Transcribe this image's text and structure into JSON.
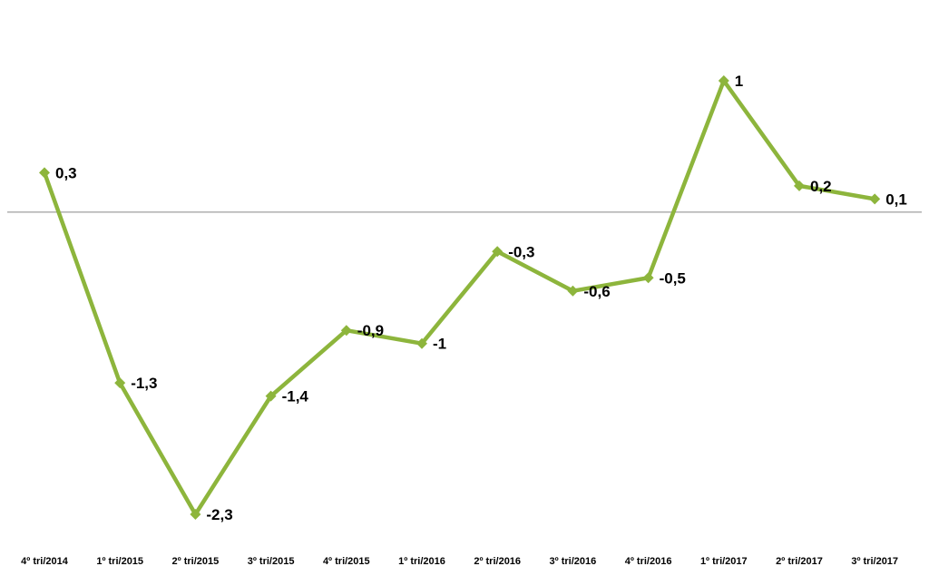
{
  "chart_data": {
    "type": "line",
    "categories": [
      "4º tri/2014",
      "1º tri/2015",
      "2º tri/2015",
      "3º tri/2015",
      "4º tri/2015",
      "1º tri/2016",
      "2º tri/2016",
      "3º tri/2016",
      "4º tri/2016",
      "1º tri/2017",
      "2º tri/2017",
      "3º tri/2017"
    ],
    "series": [
      {
        "values": [
          0.3,
          -1.3,
          -2.3,
          -1.4,
          -0.9,
          -1,
          -0.3,
          -0.6,
          -0.5,
          1,
          0.2,
          0.1
        ],
        "data_labels": [
          "0,3",
          "-1,3",
          "-2,3",
          "-1,4",
          "-0,9",
          "-1",
          "-0,3",
          "-0,6",
          "-0,5",
          "1",
          "0,2",
          "0,1"
        ],
        "color": "#8db53c",
        "marker": "diamond"
      }
    ],
    "title": "",
    "xlabel": "",
    "ylabel": "",
    "ylim": [
      -2.3,
      1.0
    ],
    "zero_line": true,
    "zero_line_color": "#888888",
    "y_axis_visible": false,
    "grid": false,
    "legend": false
  }
}
